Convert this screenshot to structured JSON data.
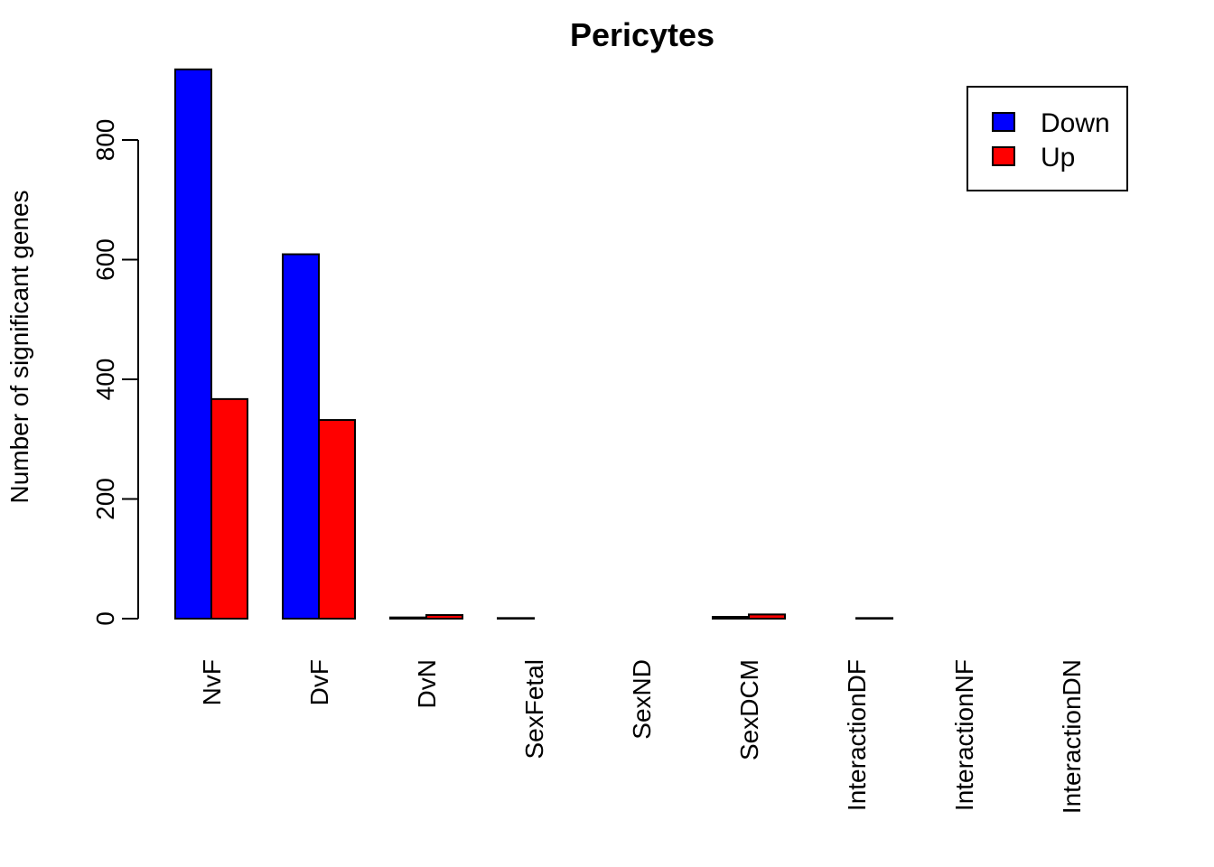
{
  "chart_data": {
    "type": "bar",
    "title": "Pericytes",
    "xlabel": "",
    "ylabel": "Number of significant genes",
    "categories": [
      "NvF",
      "DvF",
      "DvN",
      "SexFetal",
      "SexND",
      "SexDCM",
      "InteractionDF",
      "InteractionNF",
      "InteractionDN"
    ],
    "series": [
      {
        "name": "Down",
        "color": "#0000ff",
        "values": [
          918,
          609,
          2,
          1,
          0,
          3,
          0,
          0,
          0
        ]
      },
      {
        "name": "Up",
        "color": "#ff0000",
        "values": [
          367,
          332,
          6,
          0,
          0,
          7,
          1,
          0,
          0
        ]
      }
    ],
    "ylim": [
      0,
      918
    ],
    "yticks": [
      0,
      200,
      400,
      600,
      800
    ],
    "legend_position": "top-right",
    "grid": false
  }
}
